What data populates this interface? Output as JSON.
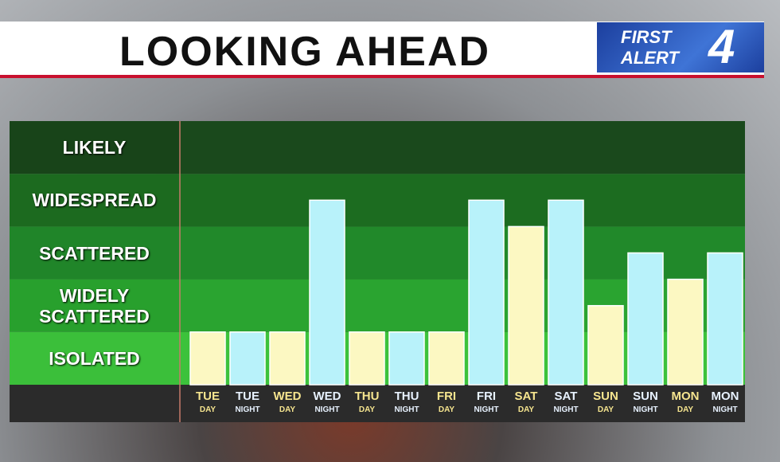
{
  "chart_data": {
    "type": "bar",
    "title": "LOOKING AHEAD",
    "logo": [
      "FIRST",
      "ALERT",
      "4"
    ],
    "categories": [
      "TUE DAY",
      "TUE NIGHT",
      "WED DAY",
      "WED NIGHT",
      "THU DAY",
      "THU NIGHT",
      "FRI DAY",
      "FRI NIGHT",
      "SAT DAY",
      "SAT NIGHT",
      "SUN DAY",
      "SUN NIGHT",
      "MON DAY",
      "MON NIGHT"
    ],
    "values": [
      1,
      1,
      1,
      3.5,
      1,
      1,
      1,
      3.5,
      3,
      3.5,
      1.5,
      2.5,
      2,
      2.5
    ],
    "colors": [
      "#fcf8c2",
      "#b8f2fa",
      "#fcf8c2",
      "#b8f2fa",
      "#fcf8c2",
      "#b8f2fa",
      "#fcf8c2",
      "#b8f2fa",
      "#fcf8c2",
      "#b8f2fa",
      "#fcf8c2",
      "#b8f2fa",
      "#fcf8c2",
      "#b8f2fa"
    ],
    "ylim": [
      0,
      5
    ],
    "yticks": [
      {
        "value": 0.5,
        "label": "ISOLATED"
      },
      {
        "value": 1.5,
        "label": "WIDELY SCATTERED"
      },
      {
        "value": 2.5,
        "label": "SCATTERED"
      },
      {
        "value": 3.5,
        "label": "WIDESPREAD"
      },
      {
        "value": 4.5,
        "label": "LIKELY"
      }
    ]
  }
}
